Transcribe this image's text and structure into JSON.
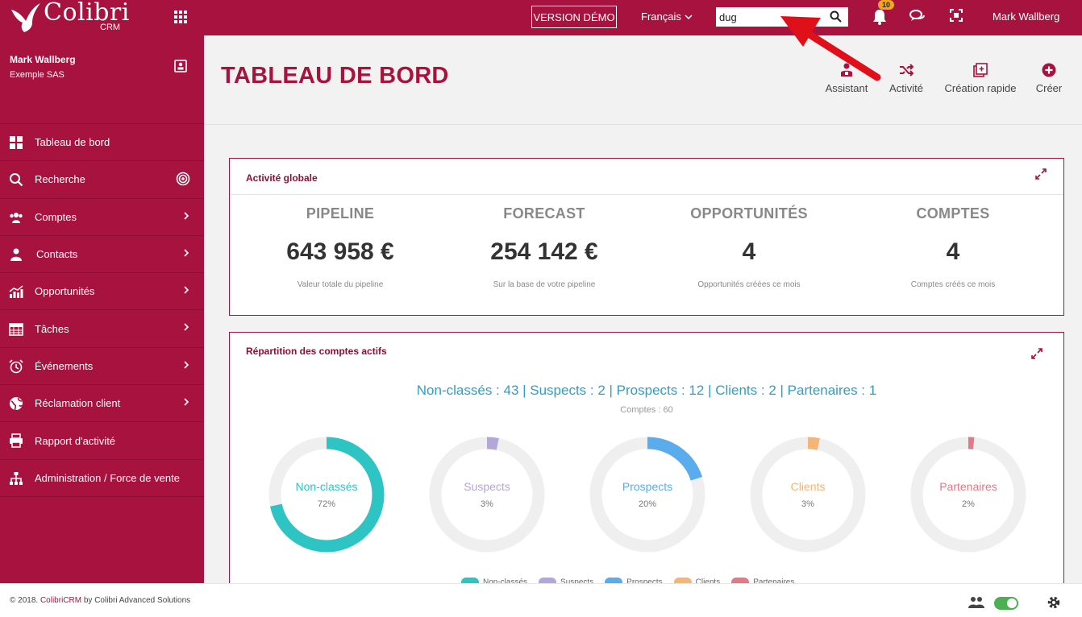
{
  "topbar": {
    "logo_text": "Colibri",
    "logo_sub": "CRM",
    "demo_label": "VERSION DÉMO",
    "language": "Français",
    "search_value": "dug",
    "notification_count": "10",
    "user": "Mark Wallberg"
  },
  "sidebar": {
    "user_name": "Mark Wallberg",
    "company": "Exemple SAS",
    "items": [
      {
        "label": "Tableau de bord",
        "icon": "dashboard-icon"
      },
      {
        "label": "Recherche",
        "icon": "search-icon"
      },
      {
        "label": "Comptes",
        "icon": "accounts-icon"
      },
      {
        "label": "Contacts",
        "icon": "contacts-icon"
      },
      {
        "label": "Opportunités",
        "icon": "chart-icon"
      },
      {
        "label": "Tâches",
        "icon": "calendar-icon"
      },
      {
        "label": "Événements",
        "icon": "alarm-icon"
      },
      {
        "label": "Réclamation client",
        "icon": "globe-icon"
      },
      {
        "label": "Rapport d'activité",
        "icon": "printer-icon"
      },
      {
        "label": "Administration / Force de vente",
        "icon": "sitemap-icon"
      }
    ]
  },
  "header": {
    "title": "TABLEAU DE BORD",
    "actions": [
      {
        "label": "Assistant",
        "icon": "assistant-icon"
      },
      {
        "label": "Activité",
        "icon": "shuffle-icon"
      },
      {
        "label": "Création rapide",
        "icon": "quick-create-icon"
      },
      {
        "label": "Créer",
        "icon": "plus-circle-icon"
      }
    ]
  },
  "activity_panel": {
    "title": "Activité globale",
    "kpis": [
      {
        "label": "PIPELINE",
        "value": "643 958 €",
        "sub": "Valeur totale du pipeline"
      },
      {
        "label": "FORECAST",
        "value": "254 142 €",
        "sub": "Sur la base de votre pipeline"
      },
      {
        "label": "OPPORTUNITÉS",
        "value": "4",
        "sub": "Opportunités créées ce mois"
      },
      {
        "label": "COMPTES",
        "value": "4",
        "sub": "Comptes créés ce mois"
      }
    ]
  },
  "accounts_panel": {
    "title": "Répartition des comptes actifs",
    "summary": "Non-classés : 43 | Suspects : 2 | Prospects : 12 | Clients : 2 | Partenaires : 1",
    "total": "Comptes : 60"
  },
  "chart_data": {
    "type": "pie",
    "categories": [
      "Non-classés",
      "Suspects",
      "Prospects",
      "Clients",
      "Partenaires"
    ],
    "values": [
      43,
      2,
      12,
      2,
      1
    ],
    "percent_labels": [
      "72%",
      "3%",
      "20%",
      "3%",
      "2%"
    ],
    "colors": [
      "#2ec4c4",
      "#b3a6d9",
      "#5aacec",
      "#f5b577",
      "#e07a88"
    ],
    "legend": [
      "Non-classés",
      "Suspects",
      "Prospects",
      "Clients",
      "Partenaires"
    ]
  },
  "footer": {
    "prefix": "© 2018. ",
    "brand": "ColibriCRM",
    "suffix": " by Colibri Advanced Solutions"
  }
}
